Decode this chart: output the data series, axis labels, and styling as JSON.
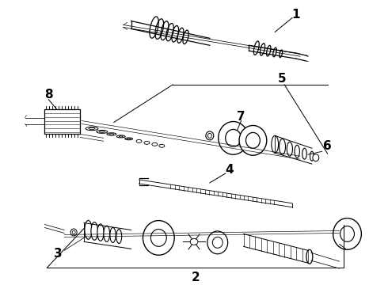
{
  "bg_color": "#ffffff",
  "line_color": "#000000",
  "fig_width": 4.9,
  "fig_height": 3.6,
  "dpi": 100,
  "part1_label": "1",
  "part2_label": "2",
  "part3_label": "3",
  "part4_label": "4",
  "part5_label": "5",
  "part6_label": "6",
  "part7_label": "7",
  "part8_label": "8",
  "label_fontsize": 11,
  "label_fontweight": "bold"
}
